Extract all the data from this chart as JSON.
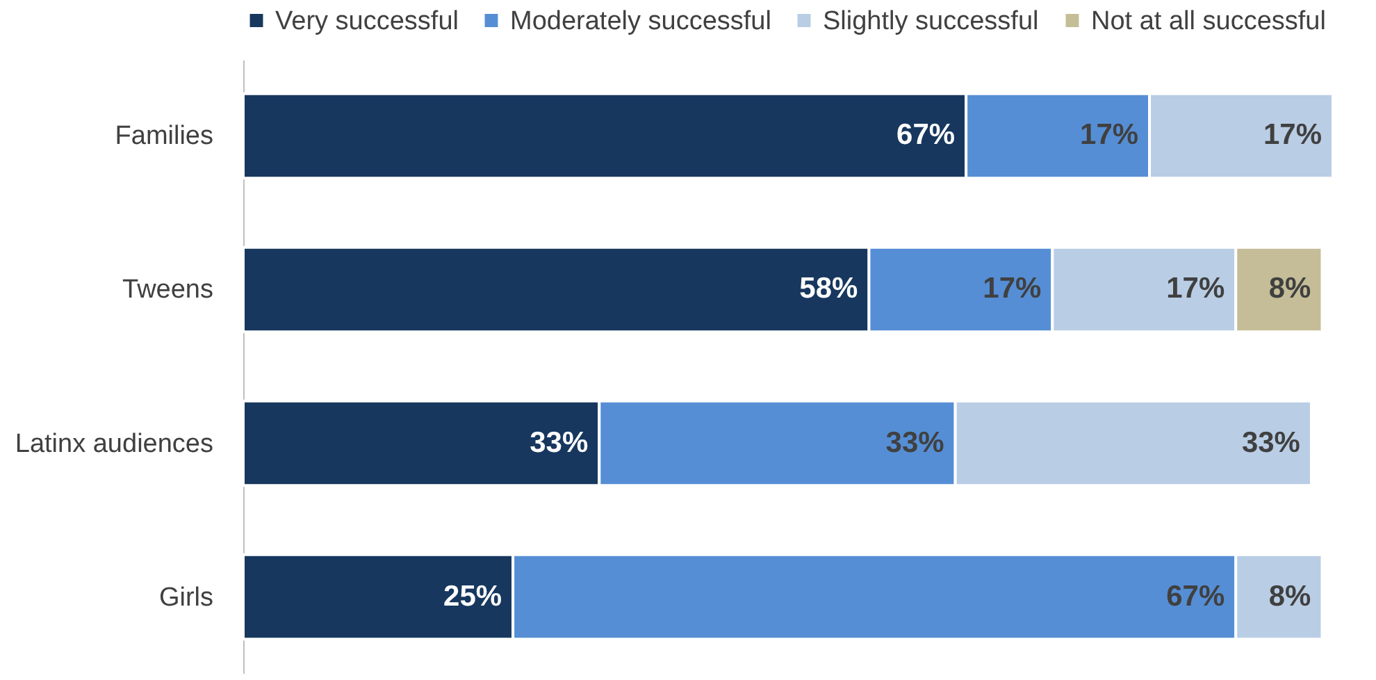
{
  "chart_data": {
    "type": "bar",
    "orientation": "horizontal",
    "stacked": true,
    "legend": "top",
    "grid": false,
    "categories": [
      "Families",
      "Tweens",
      "Latinx audiences",
      "Girls"
    ],
    "series": [
      {
        "name": "Very successful",
        "color": "#17375e",
        "values": [
          67,
          58,
          33,
          25
        ],
        "value_labels": [
          "67%",
          "58%",
          "33%",
          "25%"
        ]
      },
      {
        "name": "Moderately successful",
        "color": "#558ed5",
        "values": [
          17,
          17,
          33,
          67
        ],
        "value_labels": [
          "17%",
          "17%",
          "33%",
          "67%"
        ]
      },
      {
        "name": "Slightly successful",
        "color": "#b9cde5",
        "values": [
          17,
          17,
          33,
          8
        ],
        "value_labels": [
          "17%",
          "17%",
          "33%",
          "8%"
        ]
      },
      {
        "name": "Not at all successful",
        "color": "#c4bd97",
        "values": [
          null,
          8,
          null,
          null
        ],
        "value_labels": [
          null,
          "8%",
          null,
          null
        ]
      }
    ]
  }
}
